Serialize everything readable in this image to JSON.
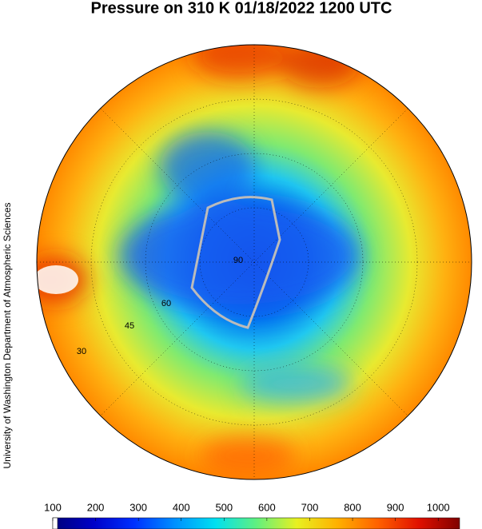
{
  "map": {
    "title": "Pressure on 310 K 01/18/2022 1200 UTC",
    "credit": "University of Washington Department of Atmospheric Sciences",
    "latitude_labels": [
      "90",
      "60",
      "45",
      "30"
    ],
    "colorbar": {
      "lim": [
        100,
        1050
      ],
      "ticks": [
        100,
        200,
        300,
        400,
        500,
        600,
        700,
        800,
        900,
        1000
      ]
    }
  }
}
